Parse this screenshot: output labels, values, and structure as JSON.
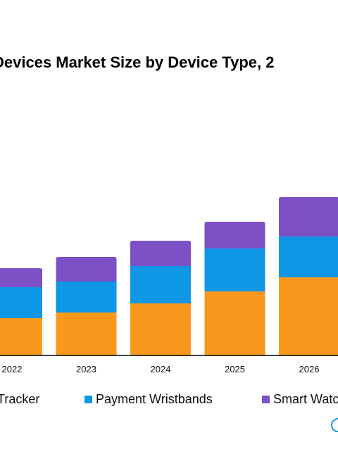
{
  "chart_data": {
    "type": "bar",
    "stacked": true,
    "title": "Devices Market Size by Device Type, 2",
    "categories": [
      "2022",
      "2023",
      "2024",
      "2025",
      "2026"
    ],
    "series": [
      {
        "name": "Tracker",
        "color": "#f8991d",
        "values": [
          53,
          61,
          74,
          91,
          111
        ]
      },
      {
        "name": "Payment Wristbands",
        "color": "#0f97e6",
        "values": [
          44,
          44,
          53,
          61,
          58
        ]
      },
      {
        "name": "Smart Watc",
        "color": "#7c51c5",
        "values": [
          27,
          35,
          36,
          38,
          56
        ]
      }
    ],
    "xlabel": "",
    "ylabel": "",
    "ylim": [
      0,
      225
    ],
    "grid": false,
    "legend": "bottom"
  },
  "logo": {
    "name": "brand-logo-fragment"
  }
}
